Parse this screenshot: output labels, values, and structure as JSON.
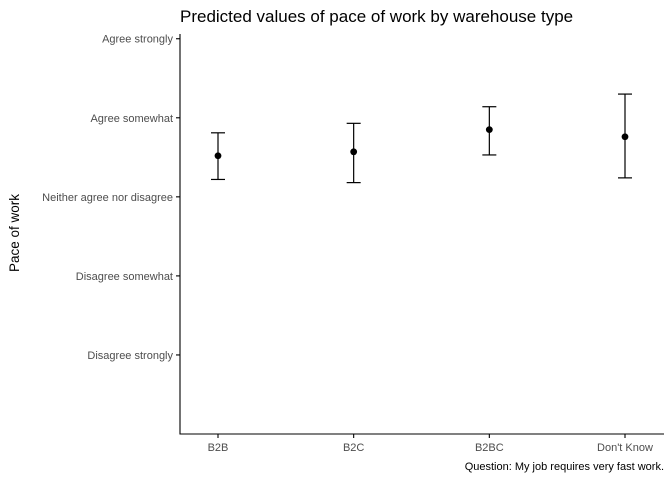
{
  "chart_data": {
    "type": "scatter",
    "title": "Predicted values of pace of work by warehouse type",
    "xlabel": "",
    "ylabel": "Pace of work",
    "caption": "Question: My job requires very fast work.",
    "categories": [
      "B2B",
      "B2C",
      "B2BC",
      "Don't Know"
    ],
    "y_tick_labels": [
      "Disagree strongly",
      "Disagree somewhat",
      "Neither agree nor disagree",
      "Agree somewhat",
      "Agree strongly"
    ],
    "y_tick_values": [
      1,
      2,
      3,
      4,
      5
    ],
    "ylim": [
      0.0,
      5.06
    ],
    "estimate": [
      3.52,
      3.57,
      3.85,
      3.76
    ],
    "ci_low": [
      3.22,
      3.18,
      3.53,
      3.24
    ],
    "ci_high": [
      3.81,
      3.93,
      4.14,
      4.3
    ],
    "grid": false,
    "colors": {
      "point": "#000000",
      "errorbar": "#000000",
      "axis": "#000000",
      "tick_label": "#4d4d4d",
      "text": "#000000"
    }
  }
}
